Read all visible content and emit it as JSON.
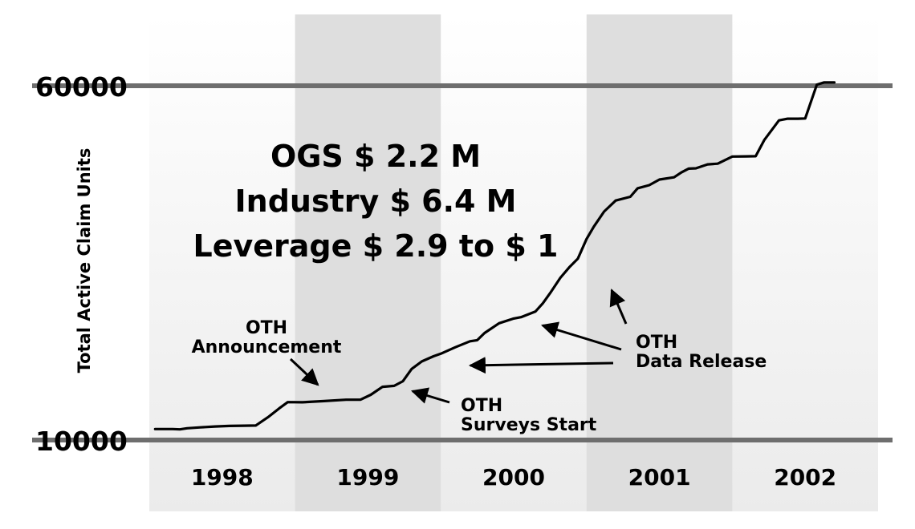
{
  "chart_data": {
    "type": "line",
    "title": "",
    "xlabel": "",
    "ylabel": "Total Active Claim Units",
    "ylim": [
      10000,
      60000
    ],
    "y_ticks": [
      "60000",
      "10000"
    ],
    "x_range": [
      1998.0,
      2003.0
    ],
    "year_bands": [
      "1998",
      "1999",
      "2000",
      "2001",
      "2002"
    ],
    "shaded_bands": [
      "1999",
      "2001"
    ],
    "grid": false,
    "legend": "none",
    "series": [
      {
        "x": [
          1998.04,
          1998.16,
          1998.21,
          1998.26,
          1998.35,
          1998.45,
          1998.55,
          1998.65,
          1998.73,
          1998.82,
          1998.89,
          1998.95,
          1999.05,
          1999.2,
          1999.35,
          1999.45,
          1999.52,
          1999.6,
          1999.68,
          1999.74,
          1999.8,
          1999.87,
          1999.95,
          2000.0,
          2000.1,
          2000.2,
          2000.25,
          2000.3,
          2000.4,
          2000.5,
          2000.55,
          2000.65,
          2000.7,
          2000.75,
          2000.82,
          2000.88,
          2000.94,
          2001.0,
          2001.05,
          2001.12,
          2001.2,
          2001.3,
          2001.35,
          2001.43,
          2001.5,
          2001.6,
          2001.65,
          2001.7,
          2001.75,
          2001.83,
          2001.9,
          2002.0,
          2002.09,
          2002.16,
          2002.22,
          2002.32,
          2002.38,
          2002.45,
          2002.5,
          2002.58,
          2002.63,
          2002.7
        ],
        "y": [
          11550,
          11550,
          11500,
          11660,
          11790,
          11910,
          11990,
          12030,
          12050,
          13300,
          14450,
          15350,
          15330,
          15500,
          15690,
          15700,
          16390,
          17510,
          17650,
          18300,
          20030,
          21100,
          21820,
          22180,
          23100,
          23940,
          24100,
          25100,
          26480,
          27150,
          27340,
          28150,
          29300,
          30730,
          32900,
          34340,
          35590,
          38370,
          40120,
          42240,
          43800,
          44330,
          45530,
          45970,
          46760,
          47080,
          47760,
          48300,
          48350,
          48900,
          49010,
          50010,
          50030,
          50060,
          52380,
          55110,
          55350,
          55350,
          55390,
          60160,
          60470,
          60480
        ]
      }
    ],
    "annotations": [
      {
        "lines": [
          "OTH",
          "Announcement"
        ]
      },
      {
        "lines": [
          "OTH",
          "Surveys Start"
        ]
      },
      {
        "lines": [
          "OTH",
          "Data Release"
        ]
      }
    ],
    "headline": [
      "OGS $ 2.2 M",
      "Industry $ 6.4 M",
      "Leverage $ 2.9 to $ 1"
    ]
  }
}
